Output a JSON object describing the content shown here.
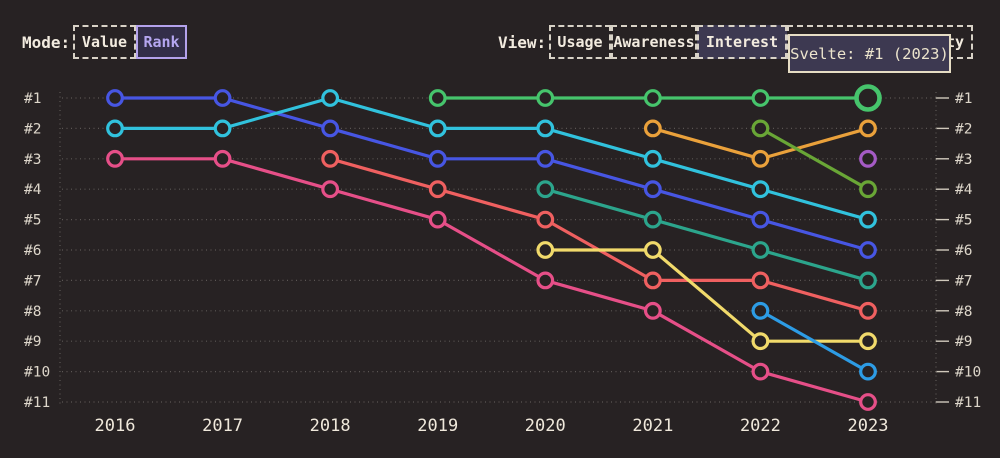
{
  "page": {
    "background": "#272223"
  },
  "toolbar": {
    "mode": {
      "label": "Mode:",
      "options": [
        {
          "label": "Value",
          "selected": false
        },
        {
          "label": "Rank",
          "selected": true
        }
      ]
    },
    "view": {
      "label": "View:",
      "options": [
        {
          "label": "Usage",
          "selected": false
        },
        {
          "label": "Awareness",
          "selected": false
        },
        {
          "label": "Interest",
          "selected": true
        },
        {
          "label": "ty",
          "selected": false,
          "visible_label_only": true
        }
      ]
    }
  },
  "tooltip": {
    "text": "Svelte: #1 (2023)"
  },
  "colors": {
    "background": "#272223",
    "grid": "#5c5755",
    "axis_tick": "#cfc8bb",
    "rank_label_text": "#ddd6ca",
    "year_label_text": "#efe8db"
  },
  "chart_data": {
    "type": "line",
    "variant": "bump-rank",
    "x": [
      "2016",
      "2017",
      "2018",
      "2019",
      "2020",
      "2021",
      "2022",
      "2023"
    ],
    "y_ticks": [
      "#1",
      "#2",
      "#3",
      "#4",
      "#5",
      "#6",
      "#7",
      "#8",
      "#9",
      "#10",
      "#11"
    ],
    "y_ticks_shown_both_sides": true,
    "grid": "dotted",
    "series": [
      {
        "id": "indigo",
        "color": "#4756e3",
        "ranks": [
          1,
          1,
          2,
          3,
          3,
          4,
          5,
          6
        ]
      },
      {
        "id": "cyan",
        "color": "#31c2dd",
        "ranks": [
          2,
          2,
          1,
          2,
          2,
          3,
          4,
          5
        ]
      },
      {
        "id": "pink",
        "color": "#e64f88",
        "ranks": [
          3,
          3,
          4,
          5,
          7,
          8,
          10,
          11
        ]
      },
      {
        "id": "coral",
        "color": "#ef6060",
        "ranks": [
          null,
          null,
          3,
          4,
          5,
          7,
          7,
          8
        ]
      },
      {
        "id": "svelte-green",
        "color": "#46c46c",
        "ranks": [
          null,
          null,
          null,
          1,
          1,
          1,
          1,
          1
        ],
        "highlight_last": true
      },
      {
        "id": "teal",
        "color": "#2ca58c",
        "ranks": [
          null,
          null,
          null,
          null,
          4,
          5,
          6,
          7
        ]
      },
      {
        "id": "yellow",
        "color": "#f1da6b",
        "ranks": [
          null,
          null,
          null,
          null,
          6,
          6,
          9,
          9
        ]
      },
      {
        "id": "orange",
        "color": "#eaa13b",
        "ranks": [
          null,
          null,
          null,
          null,
          null,
          2,
          3,
          2
        ]
      },
      {
        "id": "leaf-green",
        "color": "#69a636",
        "ranks": [
          null,
          null,
          null,
          null,
          null,
          null,
          2,
          4
        ]
      },
      {
        "id": "sky-blue",
        "color": "#2d9ce5",
        "ranks": [
          null,
          null,
          null,
          null,
          null,
          null,
          8,
          10
        ]
      },
      {
        "id": "purple",
        "color": "#a55bc5",
        "ranks": [
          null,
          null,
          null,
          null,
          null,
          null,
          null,
          3
        ]
      }
    ],
    "highlight": {
      "series": "svelte-green",
      "x": "2023",
      "rank": 1,
      "tooltip": "Svelte: #1 (2023)"
    }
  }
}
